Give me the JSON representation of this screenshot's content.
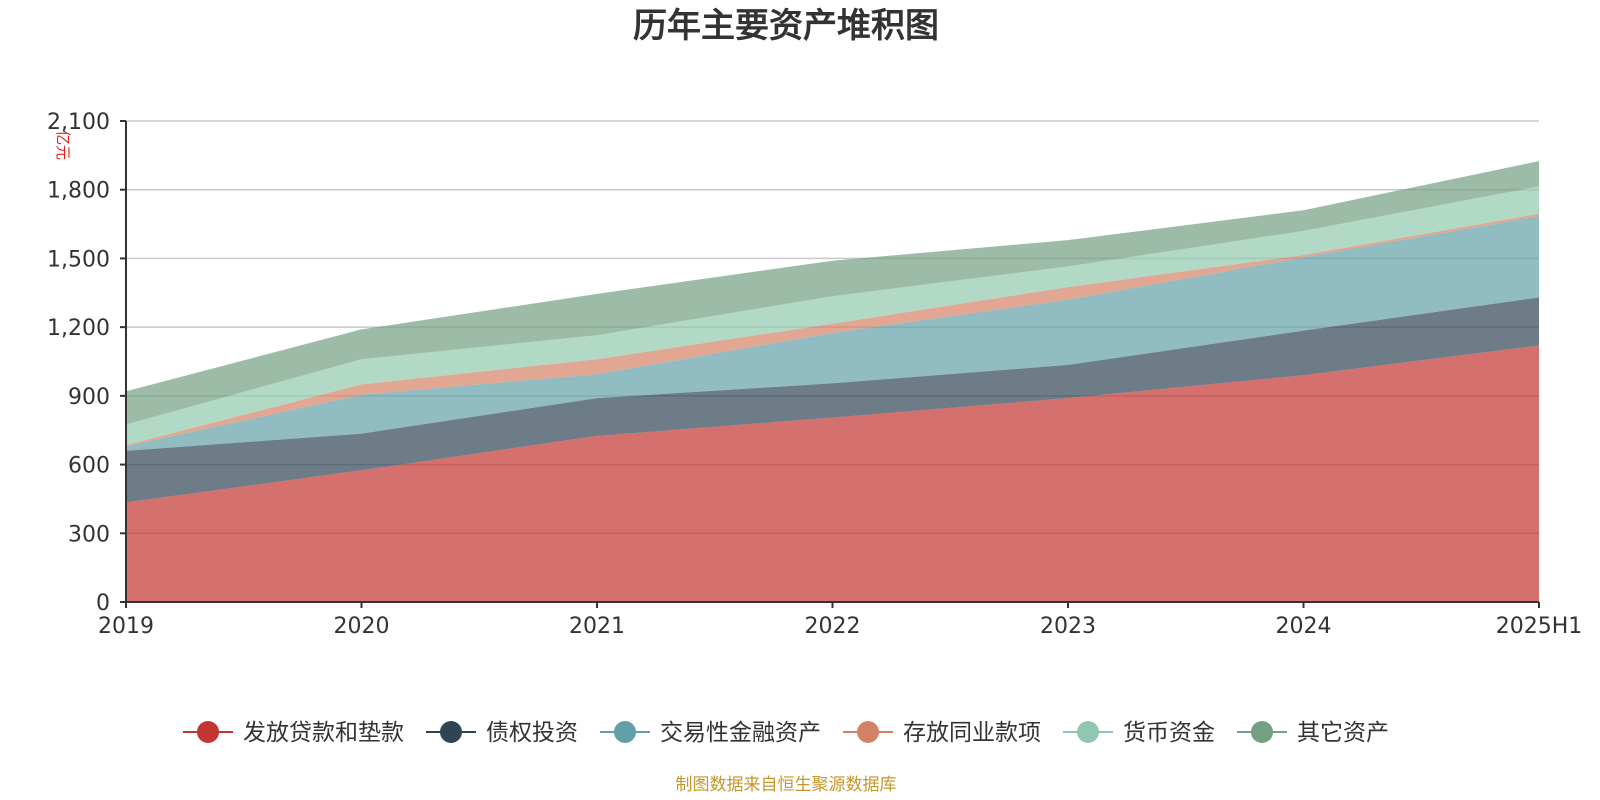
{
  "chart_data": {
    "type": "area",
    "stacked": true,
    "title": "历年主要资产堆积图",
    "unit_label": "亿元",
    "xlabel": "",
    "ylabel": "",
    "categories": [
      "2019",
      "2020",
      "2021",
      "2022",
      "2023",
      "2024",
      "2025H1"
    ],
    "ylim": [
      0,
      2100
    ],
    "yticks": [
      0,
      300,
      600,
      900,
      1200,
      1500,
      1800,
      2100
    ],
    "ytick_labels": [
      "0",
      "300",
      "600",
      "900",
      "1,200",
      "1,500",
      "1,800",
      "2,100"
    ],
    "grid": true,
    "legend_position": "bottom",
    "series": [
      {
        "name": "发放贷款和垫款",
        "color": "#c23531",
        "values": [
          435,
          575,
          725,
          805,
          890,
          990,
          1120
        ]
      },
      {
        "name": "债权投资",
        "color": "#2f4554",
        "values": [
          225,
          160,
          165,
          150,
          145,
          195,
          210
        ]
      },
      {
        "name": "交易性金融资产",
        "color": "#61a0a8",
        "values": [
          20,
          170,
          105,
          220,
          285,
          320,
          355
        ]
      },
      {
        "name": "存放同业款项",
        "color": "#d48265",
        "values": [
          5,
          45,
          65,
          40,
          55,
          10,
          10
        ]
      },
      {
        "name": "货币资金",
        "color": "#91c7ae",
        "values": [
          90,
          110,
          105,
          120,
          90,
          105,
          120
        ]
      },
      {
        "name": "其它资产",
        "color": "#749f83",
        "values": [
          145,
          130,
          180,
          155,
          115,
          90,
          110
        ]
      }
    ]
  },
  "source": "制图数据来自恒生聚源数据库"
}
